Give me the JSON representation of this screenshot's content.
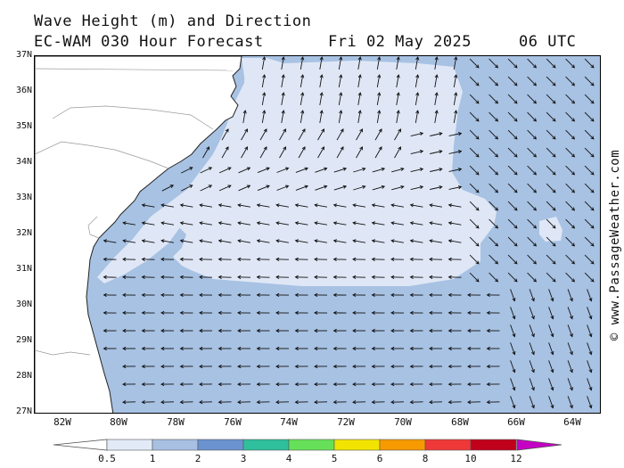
{
  "header": {
    "title": "Wave Height (m) and Direction",
    "model": "EC-WAM 030 Hour Forecast",
    "date": "Fri 02 May 2025",
    "time": "06 UTC"
  },
  "credit": "© www.PassageWeather.com",
  "axes": {
    "lat_labels": [
      "37N",
      "36N",
      "35N",
      "34N",
      "33N",
      "32N",
      "31N",
      "30N",
      "29N",
      "28N",
      "27N"
    ],
    "lon_labels": [
      "82W",
      "80W",
      "78W",
      "76W",
      "74W",
      "72W",
      "70W",
      "68W",
      "66W",
      "64W"
    ]
  },
  "legend": {
    "labels": [
      "0.5",
      "1",
      "2",
      "3",
      "4",
      "5",
      "6",
      "8",
      "10",
      "12"
    ],
    "colors": [
      "#e3eaf7",
      "#a8c0e2",
      "#6a93cf",
      "#2fbf9c",
      "#66e058",
      "#f2e400",
      "#f79a00",
      "#ef3838",
      "#c1001c",
      "#c400c4"
    ]
  },
  "map_colors": {
    "land": "#ffffff",
    "wave_low": "#dfe7f6",
    "wave_mid": "#a8c2e3"
  },
  "wave_fields": {
    "below_1m_area": "central Atlantic region roughly 78W-67W, 31N-36.5N",
    "1_to_2m_area": "remaining coastal and offshore waters"
  }
}
